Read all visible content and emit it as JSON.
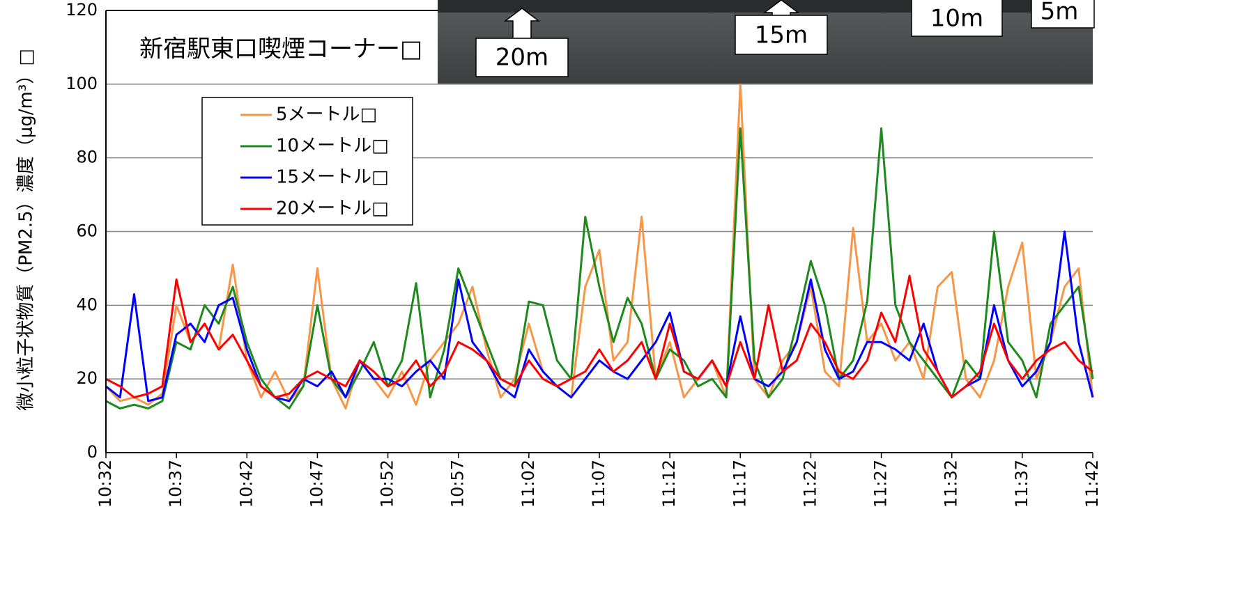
{
  "chart_data": {
    "type": "line",
    "title": "新宿駅東口喫煙コーナー□",
    "y_label": "微小粒子状物質（PM2.5）濃度（μg/m³）□",
    "annotations": [
      "20m",
      "15m",
      "10m",
      "5m"
    ],
    "categories": [
      "10:32",
      null,
      null,
      null,
      null,
      "10:37",
      null,
      null,
      null,
      null,
      "10:42",
      null,
      null,
      null,
      null,
      "10:47",
      null,
      null,
      null,
      null,
      "10:52",
      null,
      null,
      null,
      null,
      "10:57",
      null,
      null,
      null,
      null,
      "11:02",
      null,
      null,
      null,
      null,
      "11:07",
      null,
      null,
      null,
      null,
      "11:12",
      null,
      null,
      null,
      null,
      "11:17",
      null,
      null,
      null,
      null,
      "11:22",
      null,
      null,
      null,
      null,
      "11:27",
      null,
      null,
      null,
      null,
      "11:32",
      null,
      null,
      null,
      null,
      "11:37",
      null,
      null,
      null,
      null,
      "11:42"
    ],
    "series": [
      {
        "name": "5メートル□",
        "color": "#f79646",
        "values": [
          18,
          14,
          15,
          13,
          16,
          40,
          30,
          35,
          28,
          51,
          25,
          15,
          22,
          14,
          18,
          50,
          20,
          12,
          25,
          20,
          15,
          22,
          13,
          25,
          30,
          35,
          45,
          28,
          15,
          20,
          35,
          22,
          18,
          15,
          45,
          55,
          25,
          30,
          64,
          20,
          30,
          15,
          20,
          25,
          15,
          100,
          20,
          15,
          25,
          30,
          45,
          22,
          18,
          61,
          30,
          35,
          25,
          30,
          20,
          45,
          49,
          20,
          15,
          25,
          45,
          57,
          20,
          30,
          45,
          50,
          15
        ]
      },
      {
        "name": "10メートル□",
        "color": "#1e8a1e",
        "values": [
          14,
          12,
          13,
          12,
          14,
          30,
          28,
          40,
          35,
          45,
          30,
          20,
          15,
          12,
          18,
          40,
          20,
          15,
          22,
          30,
          18,
          25,
          46,
          15,
          28,
          50,
          40,
          30,
          20,
          18,
          41,
          40,
          25,
          20,
          64,
          45,
          30,
          42,
          35,
          20,
          28,
          25,
          18,
          20,
          15,
          88,
          25,
          15,
          20,
          35,
          52,
          40,
          20,
          25,
          41,
          88,
          40,
          30,
          25,
          20,
          15,
          25,
          20,
          60,
          30,
          25,
          15,
          35,
          40,
          45,
          20
        ]
      },
      {
        "name": "15メートル□",
        "color": "#0000ff",
        "values": [
          18,
          15,
          43,
          14,
          15,
          32,
          35,
          30,
          40,
          42,
          28,
          18,
          15,
          14,
          20,
          18,
          22,
          15,
          25,
          20,
          20,
          18,
          22,
          25,
          20,
          47,
          30,
          25,
          18,
          15,
          28,
          22,
          18,
          15,
          20,
          25,
          22,
          20,
          25,
          30,
          38,
          22,
          20,
          25,
          18,
          37,
          20,
          18,
          22,
          30,
          47,
          28,
          20,
          22,
          30,
          30,
          28,
          25,
          35,
          22,
          15,
          18,
          20,
          40,
          25,
          18,
          22,
          30,
          60,
          30,
          15
        ]
      },
      {
        "name": "20メートル□",
        "color": "#ff0000",
        "values": [
          20,
          18,
          15,
          16,
          18,
          47,
          30,
          35,
          28,
          32,
          25,
          18,
          15,
          16,
          20,
          22,
          20,
          18,
          25,
          22,
          18,
          20,
          25,
          18,
          22,
          30,
          28,
          25,
          20,
          18,
          25,
          20,
          18,
          20,
          22,
          28,
          22,
          25,
          30,
          20,
          35,
          22,
          20,
          25,
          18,
          30,
          20,
          40,
          22,
          25,
          35,
          30,
          22,
          20,
          25,
          38,
          30,
          48,
          28,
          22,
          15,
          18,
          22,
          35,
          25,
          20,
          25,
          28,
          30,
          25,
          22
        ]
      }
    ],
    "ylim": [
      0,
      120
    ],
    "yticks": [
      0,
      20,
      40,
      60,
      80,
      100,
      120
    ],
    "grid": true,
    "legend": "upper left"
  }
}
